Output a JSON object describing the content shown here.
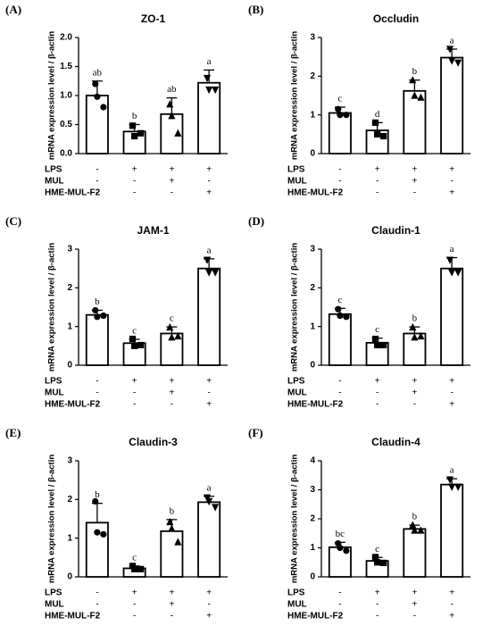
{
  "chart_data": [
    {
      "type": "bar",
      "panel": "(A)",
      "title": "ZO-1",
      "ylabel": "mRNA expression level / β-actin",
      "values": [
        1.0,
        0.38,
        0.68,
        1.22
      ],
      "errors": [
        0.25,
        0.12,
        0.28,
        0.22
      ],
      "letters": [
        "ab",
        "b",
        "ab",
        "a"
      ],
      "points": [
        [
          1.2,
          0.98,
          0.8
        ],
        [
          0.48,
          0.3,
          0.35
        ],
        [
          0.85,
          0.65,
          0.35
        ],
        [
          1.3,
          1.1,
          1.1
        ]
      ],
      "ylim": [
        0,
        2
      ],
      "yticks": [
        {
          "value": 0,
          "label": "0.0"
        },
        {
          "value": 0.5,
          "label": "0.5"
        },
        {
          "value": 1,
          "label": "1.0"
        },
        {
          "value": 1.5,
          "label": "1.5"
        },
        {
          "value": 2,
          "label": "2.0"
        }
      ],
      "treatments": [
        {
          "name": "LPS",
          "signs": [
            "-",
            "+",
            "+",
            "+"
          ]
        },
        {
          "name": "MUL",
          "signs": [
            "-",
            "-",
            "+",
            "-"
          ]
        },
        {
          "name": "HME-MUL-F2",
          "signs": [
            "-",
            "-",
            "-",
            "+"
          ]
        }
      ],
      "color": "#ffffff",
      "markers": [
        "circle",
        "square",
        "triangle-up",
        "triangle-down"
      ]
    },
    {
      "type": "bar",
      "panel": "(B)",
      "title": "Occludin",
      "ylabel": "mRNA expression level / β-actin",
      "values": [
        1.05,
        0.6,
        1.62,
        2.48
      ],
      "errors": [
        0.15,
        0.2,
        0.28,
        0.22
      ],
      "letters": [
        "c",
        "d",
        "b",
        "a"
      ],
      "points": [
        [
          1.15,
          1.0,
          1.0
        ],
        [
          0.8,
          0.5,
          0.45
        ],
        [
          1.9,
          1.5,
          1.45
        ],
        [
          2.7,
          2.4,
          2.35
        ]
      ],
      "ylim": [
        0,
        3
      ],
      "yticks": [
        0,
        1,
        2,
        3
      ],
      "treatments": [
        {
          "name": "LPS",
          "signs": [
            "-",
            "+",
            "+",
            "+"
          ]
        },
        {
          "name": "MUL",
          "signs": [
            "-",
            "-",
            "+",
            "-"
          ]
        },
        {
          "name": "HME-MUL-F2",
          "signs": [
            "-",
            "-",
            "-",
            "+"
          ]
        }
      ],
      "color": "#ffffff",
      "markers": [
        "circle",
        "square",
        "triangle-up",
        "triangle-down"
      ]
    },
    {
      "type": "bar",
      "panel": "(C)",
      "title": "JAM-1",
      "ylabel": "mRNA expression level / β-actin",
      "values": [
        1.3,
        0.57,
        0.82,
        2.5
      ],
      "errors": [
        0.12,
        0.1,
        0.17,
        0.25
      ],
      "letters": [
        "b",
        "c",
        "c",
        "a"
      ],
      "points": [
        [
          1.42,
          1.25,
          1.28
        ],
        [
          0.68,
          0.5,
          0.52
        ],
        [
          0.98,
          0.72,
          0.75
        ],
        [
          2.72,
          2.4,
          2.4
        ]
      ],
      "ylim": [
        0,
        3
      ],
      "yticks": [
        0,
        1,
        2,
        3
      ],
      "treatments": [
        {
          "name": "LPS",
          "signs": [
            "-",
            "+",
            "+",
            "+"
          ]
        },
        {
          "name": "MUL",
          "signs": [
            "-",
            "-",
            "+",
            "-"
          ]
        },
        {
          "name": "HME-MUL-F2",
          "signs": [
            "-",
            "-",
            "-",
            "+"
          ]
        }
      ],
      "color": "#ffffff",
      "markers": [
        "circle",
        "square",
        "triangle-up",
        "triangle-down"
      ]
    },
    {
      "type": "bar",
      "panel": "(D)",
      "title": "Claudin-1",
      "ylabel": "mRNA expression level / β-actin",
      "values": [
        1.32,
        0.58,
        0.82,
        2.5
      ],
      "errors": [
        0.15,
        0.12,
        0.17,
        0.28
      ],
      "letters": [
        "c",
        "c",
        "b",
        "a"
      ],
      "points": [
        [
          1.45,
          1.28,
          1.25
        ],
        [
          0.68,
          0.52,
          0.52
        ],
        [
          0.98,
          0.72,
          0.75
        ],
        [
          2.72,
          2.4,
          2.4
        ]
      ],
      "ylim": [
        0,
        3
      ],
      "yticks": [
        0,
        1,
        2,
        3
      ],
      "treatments": [
        {
          "name": "LPS",
          "signs": [
            "-",
            "+",
            "+",
            "+"
          ]
        },
        {
          "name": "MUL",
          "signs": [
            "-",
            "-",
            "+",
            "-"
          ]
        },
        {
          "name": "HME-MUL-F2",
          "signs": [
            "-",
            "-",
            "-",
            "+"
          ]
        }
      ],
      "color": "#ffffff",
      "markers": [
        "circle",
        "square",
        "triangle-up",
        "triangle-down"
      ]
    },
    {
      "type": "bar",
      "panel": "(E)",
      "title": "Claudin-3",
      "ylabel": "mRNA expression level / β-actin",
      "values": [
        1.4,
        0.22,
        1.18,
        1.93
      ],
      "errors": [
        0.5,
        0.06,
        0.3,
        0.15
      ],
      "letters": [
        "b",
        "c",
        "b",
        "a"
      ],
      "points": [
        [
          1.95,
          1.15,
          1.1
        ],
        [
          0.28,
          0.2,
          0.2
        ],
        [
          1.42,
          1.25,
          0.9
        ],
        [
          2.05,
          1.95,
          1.8
        ]
      ],
      "ylim": [
        0,
        3
      ],
      "yticks": [
        0,
        1,
        2,
        3
      ],
      "treatments": [
        {
          "name": "LPS",
          "signs": [
            "-",
            "+",
            "+",
            "+"
          ]
        },
        {
          "name": "MUL",
          "signs": [
            "-",
            "-",
            "+",
            "-"
          ]
        },
        {
          "name": "HME-MUL-F2",
          "signs": [
            "-",
            "-",
            "-",
            "+"
          ]
        }
      ],
      "color": "#ffffff",
      "markers": [
        "circle",
        "square",
        "triangle-up",
        "triangle-down"
      ]
    },
    {
      "type": "bar",
      "panel": "(F)",
      "title": "Claudin-4",
      "ylabel": "mRNA expression level / β-actin",
      "values": [
        1.02,
        0.55,
        1.65,
        3.18
      ],
      "errors": [
        0.17,
        0.12,
        0.13,
        0.2
      ],
      "letters": [
        "bc",
        "c",
        "b",
        "a"
      ],
      "points": [
        [
          1.15,
          1.0,
          0.9
        ],
        [
          0.68,
          0.5,
          0.48
        ],
        [
          1.78,
          1.6,
          1.6
        ],
        [
          3.35,
          3.1,
          3.1
        ]
      ],
      "ylim": [
        0,
        4
      ],
      "yticks": [
        0,
        1,
        2,
        3,
        4
      ],
      "treatments": [
        {
          "name": "LPS",
          "signs": [
            "-",
            "+",
            "+",
            "+"
          ]
        },
        {
          "name": "MUL",
          "signs": [
            "-",
            "-",
            "+",
            "-"
          ]
        },
        {
          "name": "HME-MUL-F2",
          "signs": [
            "-",
            "-",
            "-",
            "+"
          ]
        }
      ],
      "color": "#ffffff",
      "markers": [
        "circle",
        "square",
        "triangle-up",
        "triangle-down"
      ]
    }
  ]
}
